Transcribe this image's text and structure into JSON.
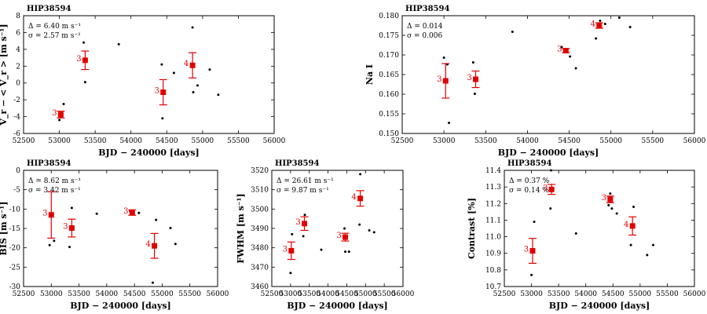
{
  "chart_data": [
    {
      "type": "scatter",
      "title": "HIP38594",
      "xlabel": "BJD − 240000 [days]",
      "ylabel": "V_r − < V_r > [m s⁻¹]",
      "xlim": [
        52500,
        56000
      ],
      "ylim": [
        -6,
        8
      ],
      "xticks": [
        52500,
        53000,
        53500,
        54000,
        54500,
        55000,
        55500,
        56000
      ],
      "yticks": [
        -6,
        -4,
        -2,
        0,
        2,
        4,
        6,
        8
      ],
      "stats": [
        "Δ = 6.40 m s⁻¹",
        "σ = 2.57 m s⁻¹"
      ],
      "points": [
        [
          53000,
          -4.4
        ],
        [
          53020,
          -4.0
        ],
        [
          53060,
          -2.5
        ],
        [
          53340,
          4.8
        ],
        [
          53360,
          0.1
        ],
        [
          53830,
          4.6
        ],
        [
          54430,
          2.2
        ],
        [
          54440,
          -4.2
        ],
        [
          54600,
          1.2
        ],
        [
          54860,
          6.6
        ],
        [
          54870,
          -1.1
        ],
        [
          54930,
          -0.3
        ],
        [
          55100,
          1.6
        ],
        [
          55220,
          -1.4
        ]
      ],
      "binned": [
        {
          "x": 53020,
          "y": -3.75,
          "err": 0.4,
          "label": "3"
        },
        {
          "x": 53360,
          "y": 2.7,
          "err": 1.1,
          "label": "3"
        },
        {
          "x": 54450,
          "y": -1.1,
          "err": 1.5,
          "label": "3"
        },
        {
          "x": 54860,
          "y": 2.1,
          "err": 1.5,
          "label": "4"
        }
      ]
    },
    {
      "type": "scatter",
      "title": "HIP38594",
      "xlabel": "BJD − 240000 [days]",
      "ylabel": "Na I",
      "xlim": [
        52500,
        56000
      ],
      "ylim": [
        0.15,
        0.18
      ],
      "xticks": [
        52500,
        53000,
        53500,
        54000,
        54500,
        55000,
        55500,
        56000
      ],
      "yticks": [
        0.15,
        0.155,
        0.16,
        0.165,
        0.17,
        0.175,
        0.18
      ],
      "yticklabels": [
        "0.150",
        "0.155",
        "0.160",
        "0.165",
        "0.170",
        "0.175",
        "0.180"
      ],
      "stats": [
        "Δ = 0.014",
        "σ = 0.006"
      ],
      "points": [
        [
          53000,
          0.1693
        ],
        [
          53040,
          0.1676
        ],
        [
          53060,
          0.1527
        ],
        [
          53350,
          0.1681
        ],
        [
          53370,
          0.1601
        ],
        [
          53820,
          0.1759
        ],
        [
          54410,
          0.172
        ],
        [
          54450,
          0.1713
        ],
        [
          54510,
          0.1696
        ],
        [
          54580,
          0.1666
        ],
        [
          54820,
          0.1742
        ],
        [
          54870,
          0.1787
        ],
        [
          54930,
          0.1779
        ],
        [
          55100,
          0.1795
        ],
        [
          55230,
          0.1771
        ]
      ],
      "binned": [
        {
          "x": 53020,
          "y": 0.1634,
          "err": 0.0044,
          "label": "3"
        },
        {
          "x": 53380,
          "y": 0.1638,
          "err": 0.0021,
          "label": "3"
        },
        {
          "x": 54460,
          "y": 0.1711,
          "err": 0.0005,
          "label": "3"
        },
        {
          "x": 54860,
          "y": 0.1775,
          "err": 0.0007,
          "label": "4"
        }
      ]
    },
    {
      "type": "scatter",
      "title": "HIP38594",
      "xlabel": "BJD − 240000 [days]",
      "ylabel": "BIS [m s⁻¹]",
      "xlim": [
        52500,
        56000
      ],
      "ylim": [
        -30,
        0
      ],
      "xticks": [
        52500,
        53000,
        53500,
        54000,
        54500,
        55000,
        55500,
        56000
      ],
      "yticks": [
        -30,
        -25,
        -20,
        -15,
        -10,
        -5,
        0
      ],
      "stats": [
        "Δ = 8.62 m s⁻¹",
        "σ = 3.42 m s⁻¹"
      ],
      "points": [
        [
          52970,
          -19.3
        ],
        [
          53050,
          -18.2
        ],
        [
          53330,
          -19.8
        ],
        [
          53370,
          -9.7
        ],
        [
          53820,
          -11.2
        ],
        [
          54420,
          -10.5
        ],
        [
          54580,
          -11.0
        ],
        [
          54830,
          -29.0
        ],
        [
          54890,
          -12.8
        ],
        [
          55150,
          -14.9
        ],
        [
          55240,
          -19.0
        ]
      ],
      "binned": [
        {
          "x": 53000,
          "y": -11.5,
          "err": 6.0,
          "label": "3"
        },
        {
          "x": 53370,
          "y": -14.9,
          "err": 2.3,
          "label": "3"
        },
        {
          "x": 54460,
          "y": -10.9,
          "err": 0.7,
          "label": "3"
        },
        {
          "x": 54860,
          "y": -19.5,
          "err": 3.2,
          "label": "4"
        }
      ]
    },
    {
      "type": "scatter",
      "title": "HIP38594",
      "xlabel": "BJD − 240000 [days]",
      "ylabel": "FWHM [m s⁻¹]",
      "xlim": [
        52500,
        56000
      ],
      "ylim": [
        3460,
        3520
      ],
      "xticks": [
        52500,
        53000,
        53500,
        54000,
        54500,
        55000,
        55500,
        56000
      ],
      "yticks": [
        3460,
        3470,
        3480,
        3490,
        3500,
        3510,
        3520
      ],
      "stats": [
        "Δ = 26.61 m s⁻¹",
        "σ = 9.87 m s⁻¹"
      ],
      "points": [
        [
          53000,
          3467
        ],
        [
          53040,
          3487
        ],
        [
          53340,
          3486
        ],
        [
          53380,
          3497
        ],
        [
          53820,
          3479
        ],
        [
          54440,
          3490
        ],
        [
          54460,
          3478
        ],
        [
          54560,
          3478
        ],
        [
          54840,
          3492
        ],
        [
          54860,
          3518
        ],
        [
          55100,
          3489
        ],
        [
          55230,
          3488
        ]
      ],
      "binned": [
        {
          "x": 53020,
          "y": 3478.5,
          "err": 4.5,
          "label": "3"
        },
        {
          "x": 53370,
          "y": 3492.5,
          "err": 3.5,
          "label": "3"
        },
        {
          "x": 54460,
          "y": 3485.5,
          "err": 2.0,
          "label": "3"
        },
        {
          "x": 54860,
          "y": 3505.5,
          "err": 4.0,
          "label": "4"
        }
      ]
    },
    {
      "type": "scatter",
      "title": "HIP38594",
      "xlabel": "BJD − 240000 [days]",
      "ylabel": "Contrast [%]",
      "xlim": [
        52500,
        56000
      ],
      "ylim": [
        10.7,
        11.4
      ],
      "xticks": [
        52500,
        53000,
        53500,
        54000,
        54500,
        55000,
        55500,
        56000
      ],
      "yticks": [
        10.7,
        10.8,
        10.9,
        11.0,
        11.1,
        11.2,
        11.3,
        11.4
      ],
      "yticklabels": [
        "10.7",
        "10.8",
        "10.9",
        "11.0",
        "11.1",
        "11.2",
        "11.3",
        "11.4"
      ],
      "stats": [
        "Δ = 0.37 %",
        "σ = 0.14 %"
      ],
      "points": [
        [
          53000,
          10.77
        ],
        [
          53050,
          11.09
        ],
        [
          53350,
          11.17
        ],
        [
          53360,
          11.4
        ],
        [
          53820,
          11.02
        ],
        [
          54420,
          11.19
        ],
        [
          54450,
          11.26
        ],
        [
          54480,
          11.17
        ],
        [
          54570,
          11.14
        ],
        [
          54830,
          10.95
        ],
        [
          54880,
          11.18
        ],
        [
          55130,
          10.89
        ],
        [
          55240,
          10.95
        ]
      ],
      "binned": [
        {
          "x": 53020,
          "y": 10.915,
          "err": 0.075,
          "label": "3"
        },
        {
          "x": 53370,
          "y": 11.285,
          "err": 0.03,
          "label": "3"
        },
        {
          "x": 54450,
          "y": 11.225,
          "err": 0.02,
          "label": "3"
        },
        {
          "x": 54860,
          "y": 11.065,
          "err": 0.055,
          "label": "4"
        }
      ]
    }
  ]
}
